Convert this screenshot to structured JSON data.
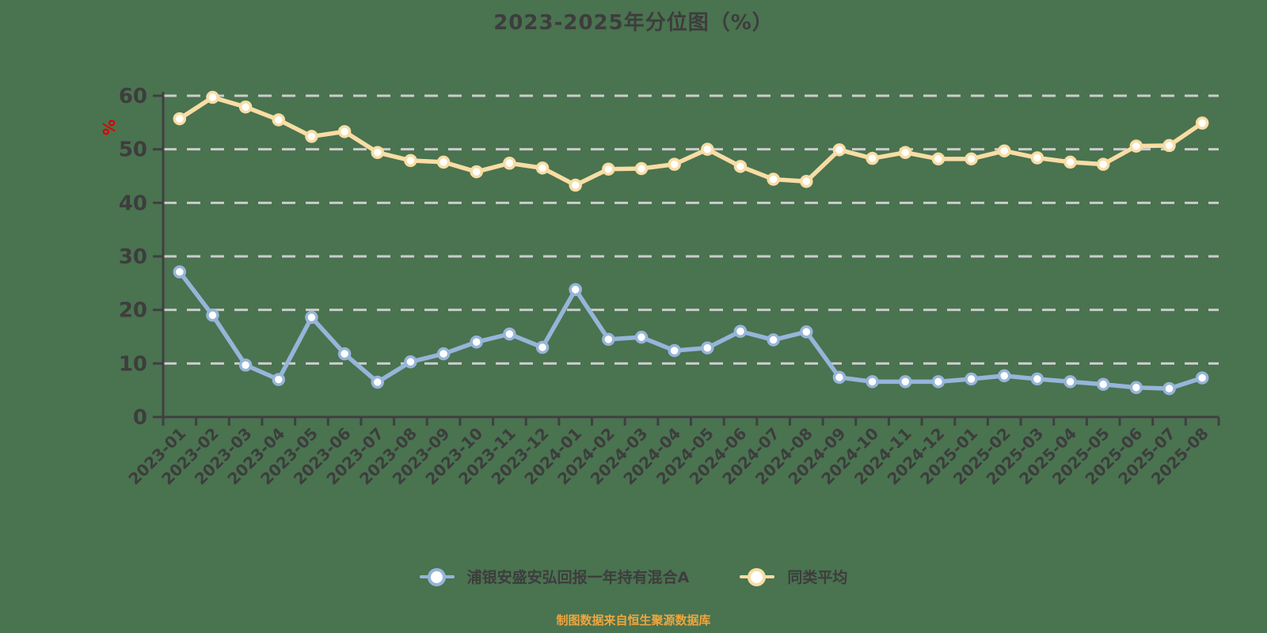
{
  "title": "2023-2025年分位图（%）",
  "footer": {
    "note": "制图数据来自恒生聚源数据库",
    "color": "#efa63e"
  },
  "colors": {
    "background": "#4a7350",
    "text": "#3d3d3d",
    "axis": "#404040",
    "gridline": "#cccccc",
    "unit_label": "#dd0000",
    "fund_series": "#96b5d9",
    "avg_series": "#f8dda4",
    "marker_fill": "#ffffff"
  },
  "legend": {
    "items": [
      {
        "label": "浦银安盛安弘回报一年持有混合A",
        "color": "#96b5d9"
      },
      {
        "label": "同类平均",
        "color": "#f8dda4"
      }
    ]
  },
  "chart_data": {
    "type": "line",
    "title": "2023-2025年分位图（%）",
    "xlabel": "",
    "ylabel": "%",
    "ylim": [
      0,
      60
    ],
    "yticks": [
      0,
      10,
      20,
      30,
      40,
      50,
      60
    ],
    "grid": "horizontal-dashed",
    "legend_position": "bottom",
    "categories": [
      "2023-01",
      "2023-02",
      "2023-03",
      "2023-04",
      "2023-05",
      "2023-06",
      "2023-07",
      "2023-08",
      "2023-09",
      "2023-10",
      "2023-11",
      "2023-12",
      "2024-01",
      "2024-02",
      "2024-03",
      "2024-04",
      "2024-05",
      "2024-06",
      "2024-07",
      "2024-08",
      "2024-09",
      "2024-10",
      "2024-11",
      "2024-12",
      "2025-01",
      "2025-02",
      "2025-03",
      "2025-04",
      "2025-05",
      "2025-06",
      "2025-07",
      "2025-08"
    ],
    "series": [
      {
        "name": "浦银安盛安弘回报一年持有混合A",
        "color": "#96b5d9",
        "values": [
          27.1,
          19.0,
          9.7,
          7.0,
          18.6,
          11.8,
          6.5,
          10.3,
          11.8,
          14.0,
          15.5,
          13.0,
          23.8,
          14.5,
          14.9,
          12.4,
          12.9,
          16.0,
          14.4,
          15.9,
          7.4,
          6.6,
          6.6,
          6.6,
          7.1,
          7.7,
          7.1,
          6.6,
          6.1,
          5.5,
          5.3,
          7.3
        ]
      },
      {
        "name": "同类平均",
        "color": "#f8dda4",
        "values": [
          55.7,
          59.7,
          57.9,
          55.5,
          52.4,
          53.3,
          49.4,
          47.9,
          47.6,
          45.8,
          47.4,
          46.5,
          43.3,
          46.3,
          46.4,
          47.2,
          50.0,
          46.8,
          44.4,
          44.0,
          49.9,
          48.3,
          49.4,
          48.2,
          48.2,
          49.7,
          48.4,
          47.6,
          47.2,
          50.6,
          50.7,
          54.9
        ]
      }
    ]
  }
}
